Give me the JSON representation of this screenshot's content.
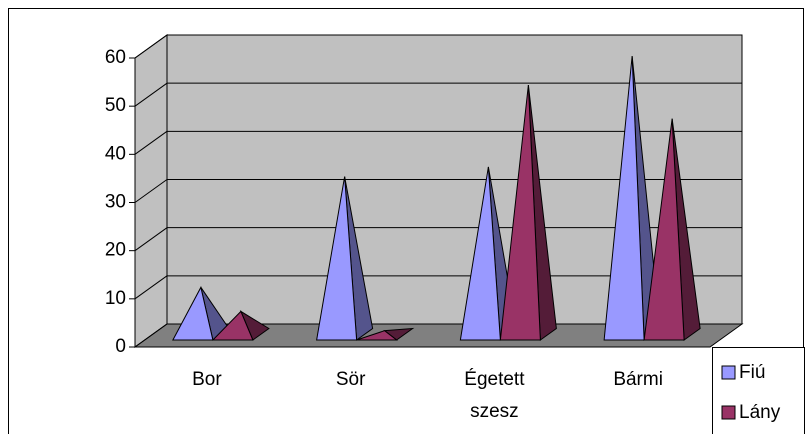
{
  "chart_data": {
    "type": "bar",
    "subtype": "3d-pyramid",
    "categories": [
      "Bor",
      "Sör",
      "Égetett szesz",
      "Bármi"
    ],
    "series": [
      {
        "name": "Fiú",
        "color": "#9999ff",
        "values": [
          10,
          33,
          35,
          58
        ]
      },
      {
        "name": "Lány",
        "color": "#993366",
        "values": [
          5,
          1,
          52,
          45
        ]
      }
    ],
    "ylim": [
      0,
      60
    ],
    "yticks": [
      0,
      10,
      20,
      30,
      40,
      50,
      60
    ],
    "grid": true,
    "legend": "lower right"
  }
}
